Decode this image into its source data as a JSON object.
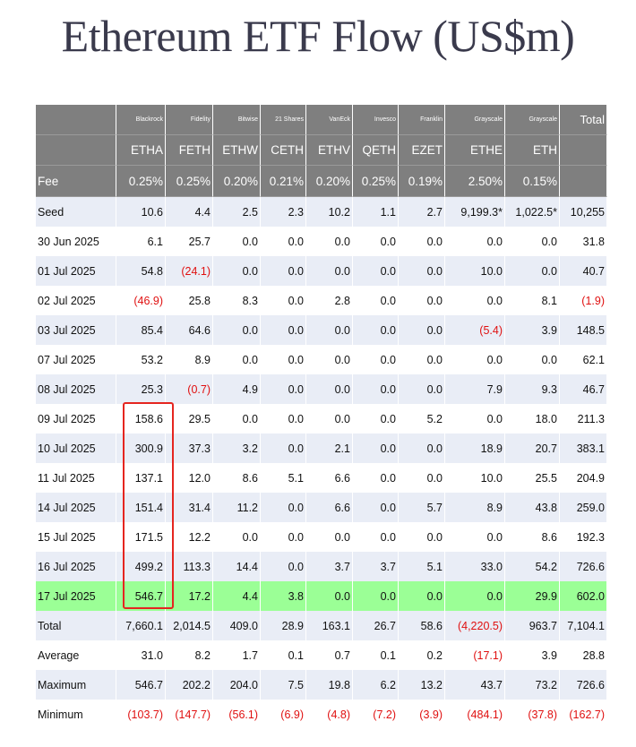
{
  "title": "Ethereum ETF Flow (US$m)",
  "header": {
    "issuers": [
      "",
      "Blackrock",
      "Fidelity",
      "Bitwise",
      "21 Shares",
      "VanEck",
      "Invesco",
      "Franklin",
      "Grayscale",
      "Grayscale",
      "Total"
    ],
    "tickers": [
      "",
      "ETHA",
      "FETH",
      "ETHW",
      "CETH",
      "ETHV",
      "QETH",
      "EZET",
      "ETHE",
      "ETH",
      ""
    ],
    "fees": [
      "Fee",
      "0.25%",
      "0.25%",
      "0.20%",
      "0.21%",
      "0.20%",
      "0.25%",
      "0.19%",
      "2.50%",
      "0.15%",
      ""
    ]
  },
  "chart_data": {
    "type": "table",
    "title": "Ethereum ETF Flow (US$m)",
    "columns": [
      "ETHA",
      "FETH",
      "ETHW",
      "CETH",
      "ETHV",
      "QETH",
      "EZET",
      "ETHE",
      "ETH",
      "Total"
    ],
    "rows": [
      {
        "label": "Seed",
        "values": [
          "10.6",
          "4.4",
          "2.5",
          "2.3",
          "10.2",
          "1.1",
          "2.7",
          "9,199.3*",
          "1,022.5*",
          "10,255"
        ]
      },
      {
        "label": "30 Jun 2025",
        "values": [
          "6.1",
          "25.7",
          "0.0",
          "0.0",
          "0.0",
          "0.0",
          "0.0",
          "0.0",
          "0.0",
          "31.8"
        ]
      },
      {
        "label": "01 Jul 2025",
        "values": [
          "54.8",
          "(24.1)",
          "0.0",
          "0.0",
          "0.0",
          "0.0",
          "0.0",
          "10.0",
          "0.0",
          "40.7"
        ]
      },
      {
        "label": "02 Jul 2025",
        "values": [
          "(46.9)",
          "25.8",
          "8.3",
          "0.0",
          "2.8",
          "0.0",
          "0.0",
          "0.0",
          "8.1",
          "(1.9)"
        ]
      },
      {
        "label": "03 Jul 2025",
        "values": [
          "85.4",
          "64.6",
          "0.0",
          "0.0",
          "0.0",
          "0.0",
          "0.0",
          "(5.4)",
          "3.9",
          "148.5"
        ]
      },
      {
        "label": "07 Jul 2025",
        "values": [
          "53.2",
          "8.9",
          "0.0",
          "0.0",
          "0.0",
          "0.0",
          "0.0",
          "0.0",
          "0.0",
          "62.1"
        ]
      },
      {
        "label": "08 Jul 2025",
        "values": [
          "25.3",
          "(0.7)",
          "4.9",
          "0.0",
          "0.0",
          "0.0",
          "0.0",
          "7.9",
          "9.3",
          "46.7"
        ]
      },
      {
        "label": "09 Jul 2025",
        "values": [
          "158.6",
          "29.5",
          "0.0",
          "0.0",
          "0.0",
          "0.0",
          "5.2",
          "0.0",
          "18.0",
          "211.3"
        ]
      },
      {
        "label": "10 Jul 2025",
        "values": [
          "300.9",
          "37.3",
          "3.2",
          "0.0",
          "2.1",
          "0.0",
          "0.0",
          "18.9",
          "20.7",
          "383.1"
        ]
      },
      {
        "label": "11 Jul 2025",
        "values": [
          "137.1",
          "12.0",
          "8.6",
          "5.1",
          "6.6",
          "0.0",
          "0.0",
          "10.0",
          "25.5",
          "204.9"
        ]
      },
      {
        "label": "14 Jul 2025",
        "values": [
          "151.4",
          "31.4",
          "11.2",
          "0.0",
          "6.6",
          "0.0",
          "5.7",
          "8.9",
          "43.8",
          "259.0"
        ]
      },
      {
        "label": "15 Jul 2025",
        "values": [
          "171.5",
          "12.2",
          "0.0",
          "0.0",
          "0.0",
          "0.0",
          "0.0",
          "0.0",
          "8.6",
          "192.3"
        ]
      },
      {
        "label": "16 Jul 2025",
        "values": [
          "499.2",
          "113.3",
          "14.4",
          "0.0",
          "3.7",
          "3.7",
          "5.1",
          "33.0",
          "54.2",
          "726.6"
        ]
      },
      {
        "label": "17 Jul 2025",
        "values": [
          "546.7",
          "17.2",
          "4.4",
          "3.8",
          "0.0",
          "0.0",
          "0.0",
          "0.0",
          "29.9",
          "602.0"
        ]
      },
      {
        "label": "Total",
        "values": [
          "7,660.1",
          "2,014.5",
          "409.0",
          "28.9",
          "163.1",
          "26.7",
          "58.6",
          "(4,220.5)",
          "963.7",
          "7,104.1"
        ]
      },
      {
        "label": "Average",
        "values": [
          "31.0",
          "8.2",
          "1.7",
          "0.1",
          "0.7",
          "0.1",
          "0.2",
          "(17.1)",
          "3.9",
          "28.8"
        ]
      },
      {
        "label": "Maximum",
        "values": [
          "546.7",
          "202.2",
          "204.0",
          "7.5",
          "19.8",
          "6.2",
          "13.2",
          "43.7",
          "73.2",
          "726.6"
        ]
      },
      {
        "label": "Minimum",
        "values": [
          "(103.7)",
          "(147.7)",
          "(56.1)",
          "(6.9)",
          "(4.8)",
          "(7.2)",
          "(3.9)",
          "(484.1)",
          "(37.8)",
          "(162.7)"
        ]
      }
    ],
    "highlight_row": "17 Jul 2025",
    "highlight_color": "#9bff96",
    "negative_color": "#e01010",
    "header_color": "#7f7f7f",
    "stripe_color": "#e9edf6",
    "outlined": {
      "column": "ETHA",
      "from_row": "09 Jul 2025",
      "to_row": "17 Jul 2025",
      "color": "#e5251f"
    }
  }
}
